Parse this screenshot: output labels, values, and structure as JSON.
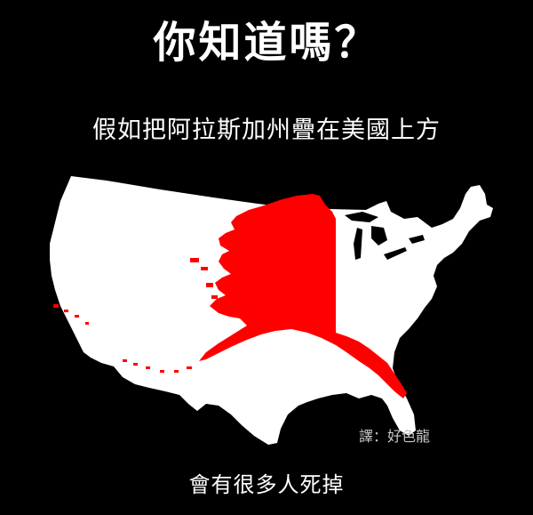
{
  "title": "你知道嗎？",
  "subtitle": "假如把阿拉斯加州疊在美國上方",
  "credit": "譯：好色龍",
  "caption": "會有很多人死掉",
  "colors": {
    "background": "#000000",
    "usa": "#ffffff",
    "alaska": "#ff0000"
  }
}
